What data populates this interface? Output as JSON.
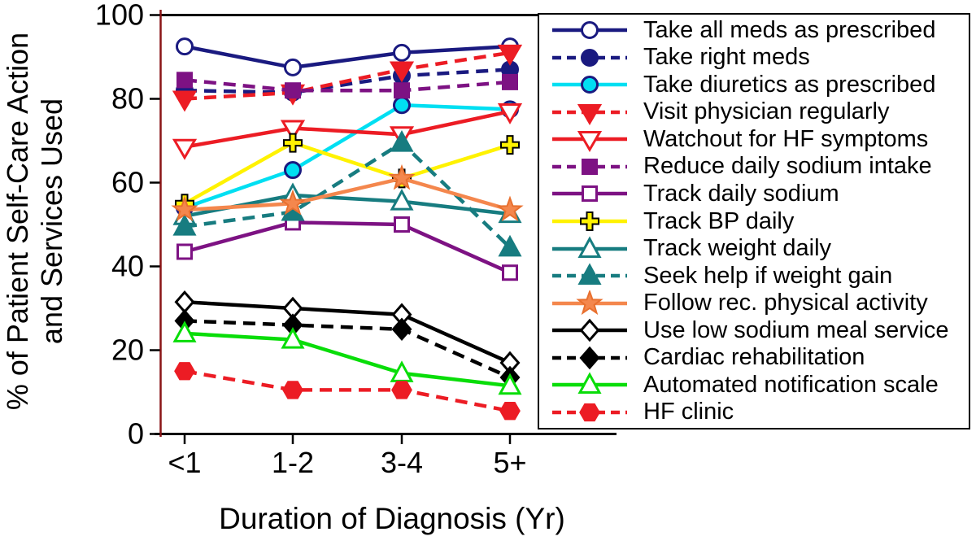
{
  "chart_data": {
    "type": "line",
    "title": "",
    "xlabel": "Duration of Diagnosis (Yr)",
    "ylabel_lines": [
      "% of Patient Self-Care Action",
      "and Services Used"
    ],
    "categories": [
      "<1",
      "1-2",
      "3-4",
      "5+"
    ],
    "y_ticks": [
      100,
      80,
      60,
      40,
      20,
      0
    ],
    "ylim": [
      0,
      100
    ],
    "grid": false,
    "legend_position": "right-overlay",
    "axis_colors": {
      "y_axis_line": "#8a1416",
      "frame": "#000000",
      "tick": "#000000"
    },
    "series": [
      {
        "name": "Take all meds as prescribed",
        "color": "#1a1a80",
        "line": "solid",
        "marker": "circle",
        "marker_fill": "#ffffff",
        "marker_stroke": "#1a1a80",
        "values": [
          92.5,
          87.5,
          91,
          92.5
        ]
      },
      {
        "name": "Take right meds",
        "color": "#1a1a80",
        "line": "dashed",
        "marker": "circle",
        "marker_fill": "#1a1a80",
        "marker_stroke": "#1a1a80",
        "values": [
          82,
          81.5,
          85.5,
          87
        ]
      },
      {
        "name": "Take diuretics as prescribed",
        "color": "#00dff2",
        "line": "solid",
        "marker": "circle",
        "marker_fill": "#00dff2",
        "marker_stroke": "#1a1a80",
        "values": [
          54,
          63,
          78.5,
          77.5
        ]
      },
      {
        "name": "Visit physician regularly",
        "color": "#ec1c24",
        "line": "dashed",
        "marker": "triangle-down",
        "marker_fill": "#ec1c24",
        "marker_stroke": "#ec1c24",
        "values": [
          80,
          81.5,
          87,
          91
        ]
      },
      {
        "name": "Watchout for HF symptoms",
        "color": "#ec1c24",
        "line": "solid",
        "marker": "triangle-down",
        "marker_fill": "#ffffff",
        "marker_stroke": "#ec1c24",
        "values": [
          68.5,
          73,
          71.5,
          77
        ]
      },
      {
        "name": "Reduce daily sodium intake",
        "color": "#7d1283",
        "line": "dashed",
        "marker": "square",
        "marker_fill": "#7d1283",
        "marker_stroke": "#7d1283",
        "values": [
          84.5,
          82,
          82,
          84
        ]
      },
      {
        "name": "Track daily sodium",
        "color": "#7d1283",
        "line": "solid",
        "marker": "square",
        "marker_fill": "#ffffff",
        "marker_stroke": "#7d1283",
        "values": [
          43.5,
          50.5,
          50,
          38.5
        ]
      },
      {
        "name": "Track BP daily",
        "color": "#fff200",
        "line": "solid",
        "marker": "plus",
        "marker_fill": "#fff200",
        "marker_stroke": "#000000",
        "values": [
          55,
          69.5,
          61,
          69
        ]
      },
      {
        "name": "Track weight daily",
        "color": "#177c80",
        "line": "solid",
        "marker": "triangle-up",
        "marker_fill": "#ffffff",
        "marker_stroke": "#177c80",
        "values": [
          52,
          57,
          55.5,
          52.5
        ]
      },
      {
        "name": "Seek help if weight gain",
        "color": "#177c80",
        "line": "dashed",
        "marker": "triangle-up",
        "marker_fill": "#177c80",
        "marker_stroke": "#177c80",
        "values": [
          49.5,
          53,
          69.5,
          44.5
        ]
      },
      {
        "name": "Follow rec. physical activity",
        "color": "#f4874d",
        "line": "solid",
        "marker": "star",
        "marker_fill": "#f4874d",
        "marker_stroke": "#e8702f",
        "values": [
          53.5,
          55,
          61,
          53.5
        ]
      },
      {
        "name": "Use low sodium meal service",
        "color": "#000000",
        "line": "solid",
        "marker": "diamond",
        "marker_fill": "#ffffff",
        "marker_stroke": "#000000",
        "values": [
          31.5,
          30,
          28.5,
          17
        ]
      },
      {
        "name": "Cardiac rehabilitation",
        "color": "#000000",
        "line": "dashed",
        "marker": "diamond",
        "marker_fill": "#000000",
        "marker_stroke": "#000000",
        "values": [
          27,
          26,
          25,
          13.5
        ]
      },
      {
        "name": "Automated notification scale",
        "color": "#09dd09",
        "line": "solid",
        "marker": "triangle-up",
        "marker_fill": "#ffffff",
        "marker_stroke": "#09dd09",
        "values": [
          24,
          22.5,
          14.5,
          11.5
        ]
      },
      {
        "name": "HF clinic",
        "color": "#ec1c24",
        "line": "dashed",
        "marker": "hexagon",
        "marker_fill": "#ec1c24",
        "marker_stroke": "#ec1c24",
        "values": [
          15,
          10.5,
          10.5,
          5.5
        ]
      }
    ]
  }
}
